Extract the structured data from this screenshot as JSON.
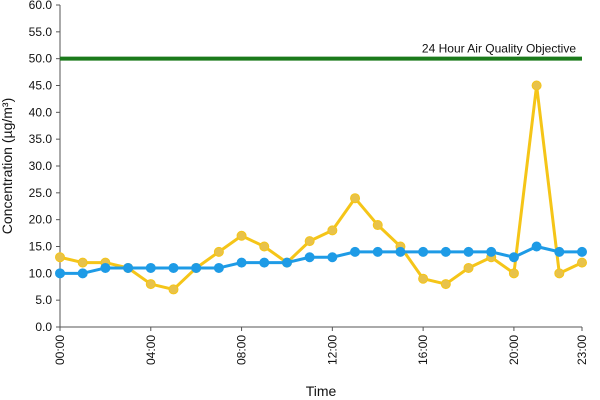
{
  "chart_data": {
    "type": "line",
    "xlabel": "Time",
    "ylabel": "Concentration (µg/m³)",
    "ylim": [
      0,
      60
    ],
    "yticks": [
      "0.0",
      "5.0",
      "10.0",
      "15.0",
      "20.0",
      "25.0",
      "30.0",
      "35.0",
      "40.0",
      "45.0",
      "50.0",
      "55.0",
      "60.0"
    ],
    "x_hours": [
      0,
      1,
      2,
      3,
      4,
      5,
      6,
      7,
      8,
      9,
      10,
      11,
      12,
      13,
      14,
      15,
      16,
      17,
      18,
      19,
      20,
      21,
      22,
      23
    ],
    "xticks": [
      {
        "hour": 0,
        "label": "00:00"
      },
      {
        "hour": 4,
        "label": "04:00"
      },
      {
        "hour": 8,
        "label": "08:00"
      },
      {
        "hour": 12,
        "label": "12:00"
      },
      {
        "hour": 16,
        "label": "16:00"
      },
      {
        "hour": 20,
        "label": "20:00"
      },
      {
        "hour": 23,
        "label": "23:00"
      }
    ],
    "grid": false,
    "series": [
      {
        "color": "#F5C518",
        "marker_color": "#E8C24A",
        "values": [
          13,
          12,
          12,
          11,
          8,
          7,
          11,
          14,
          17,
          15,
          12,
          16,
          18,
          24,
          19,
          15,
          9,
          8,
          11,
          13,
          10,
          45,
          10,
          12
        ]
      },
      {
        "color": "#1E9BE6",
        "marker_color": "#1E9BE6",
        "values": [
          10,
          10,
          11,
          11,
          11,
          11,
          11,
          11,
          12,
          12,
          12,
          13,
          13,
          14,
          14,
          14,
          14,
          14,
          14,
          14,
          13,
          15,
          14,
          14
        ]
      }
    ],
    "reference_line": {
      "value": 50,
      "label": "24 Hour Air Quality Objective",
      "color": "#1B7A1B"
    }
  }
}
